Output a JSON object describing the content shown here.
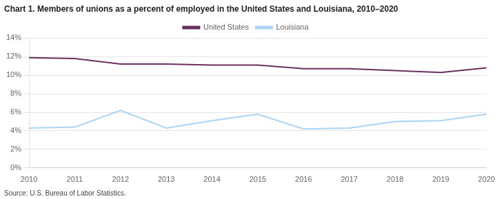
{
  "chart_data": {
    "type": "line",
    "title": "Chart 1. Members of unions as a percent of employed in the United States and Louisiana, 2010–2020",
    "annotations": [
      "Source: U.S. Bureau of Labor Statistics."
    ],
    "x": [
      2010,
      2011,
      2012,
      2013,
      2014,
      2015,
      2016,
      2017,
      2018,
      2019,
      2020
    ],
    "series": [
      {
        "name": "United States",
        "color": "#6b2f5e",
        "values": [
          11.9,
          11.8,
          11.2,
          11.2,
          11.1,
          11.1,
          10.7,
          10.7,
          10.5,
          10.3,
          10.8
        ]
      },
      {
        "name": "Louisiana",
        "color": "#a8d4f5",
        "values": [
          4.3,
          4.4,
          6.2,
          4.3,
          5.1,
          5.8,
          4.2,
          4.3,
          5.0,
          5.1,
          5.8
        ]
      }
    ],
    "xlim": [
      2010,
      2020
    ],
    "xticks": [
      2010,
      2011,
      2012,
      2013,
      2014,
      2015,
      2016,
      2017,
      2018,
      2019,
      2020
    ],
    "ylim": [
      0,
      14
    ],
    "yticks": [
      {
        "value": 0,
        "label": "0%"
      },
      {
        "value": 2,
        "label": "2%"
      },
      {
        "value": 4,
        "label": "4%"
      },
      {
        "value": 6,
        "label": "6%"
      },
      {
        "value": 8,
        "label": "8%"
      },
      {
        "value": 10,
        "label": "10%"
      },
      {
        "value": 12,
        "label": "12%"
      },
      {
        "value": 14,
        "label": "14%"
      }
    ],
    "grid": "y",
    "legend": "top"
  }
}
